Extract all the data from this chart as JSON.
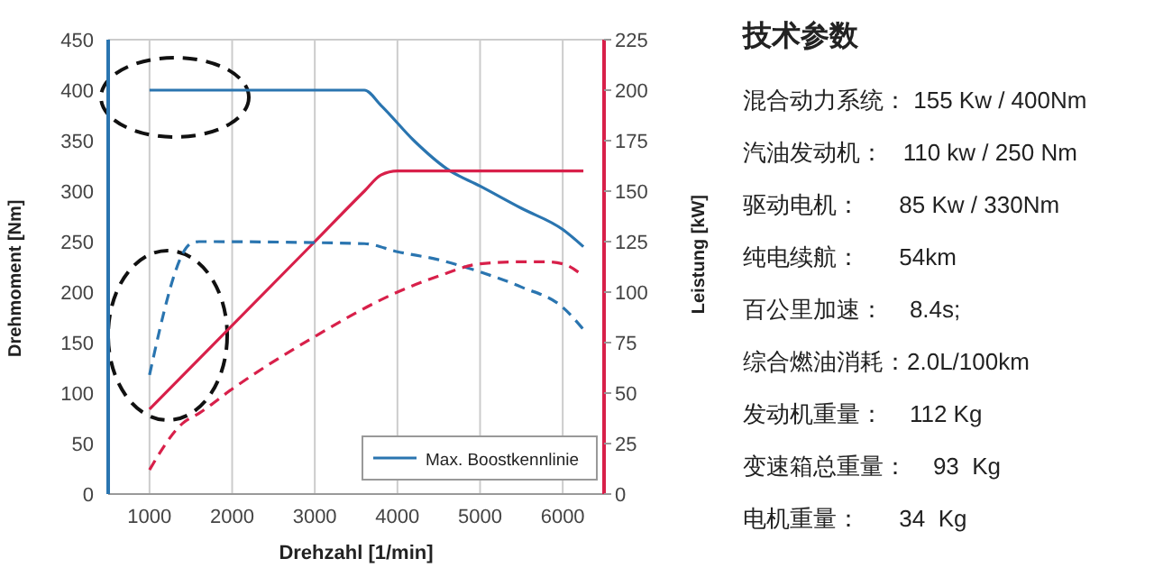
{
  "chart_data": [
    {
      "type": "line",
      "xlabel": "Drehzahl [1/min]",
      "ylabel": "Drehmoment [Nm]",
      "y2label": "Leistung [kW]",
      "xlim": [
        500,
        6500
      ],
      "xticks": [
        1000,
        2000,
        3000,
        4000,
        5000,
        6000
      ],
      "ylim": [
        0,
        450
      ],
      "yticks": [
        0,
        50,
        100,
        150,
        200,
        250,
        300,
        350,
        400,
        450
      ],
      "y2lim": [
        0,
        225
      ],
      "y2ticks": [
        0,
        25,
        50,
        75,
        100,
        125,
        150,
        175,
        200,
        225
      ],
      "grid": true,
      "legend": "bottom right",
      "marker": "none",
      "series": [
        {
          "name": "Max. Boostkennlinie",
          "color": "#2a75b0",
          "line_style": "solid",
          "x": [
            1000,
            3600,
            3800,
            4200,
            4600,
            5000,
            5500,
            6000,
            6250
          ],
          "values": [
            400,
            400,
            385,
            350,
            322,
            305,
            283,
            262,
            245
          ]
        },
        {
          "color": "#d8204a",
          "line_style": "solid",
          "axis": "y2",
          "x": [
            1000,
            3000,
            3600,
            3800,
            4000,
            6250
          ],
          "values": [
            42,
            125,
            150,
            158,
            160,
            160
          ]
        },
        {
          "color": "#2a75b0",
          "line_style": "dashed",
          "x": [
            1000,
            1500,
            1600,
            3600,
            4000,
            4500,
            5000,
            5500,
            6000,
            6250
          ],
          "values": [
            118,
            248,
            250,
            248,
            240,
            232,
            220,
            205,
            185,
            163
          ]
        },
        {
          "color": "#d8204a",
          "line_style": "dashed",
          "axis": "y2",
          "x": [
            1000,
            1400,
            1600,
            2000,
            3000,
            4000,
            4500,
            5000,
            5500,
            5800,
            6000,
            6250
          ],
          "values": [
            12,
            35,
            40,
            52,
            78,
            100,
            108,
            114,
            115,
            115,
            114,
            108
          ]
        }
      ]
    },
    {
      "type": "other",
      "title": "技术参数",
      "annotations": [
        "混合动力系统： 155 Kw / 400Nm",
        "汽油发动机：   110 kw / 250 Nm",
        "驱动电机：      85 Kw / 330Nm",
        "纯电续航：      54km",
        "百公里加速：    8.4s;",
        "综合燃油消耗：2.0L/100km",
        "发动机重量：    112 Kg",
        "变速箱总重量：    93  Kg",
        "电机重量：      34  Kg"
      ]
    }
  ]
}
